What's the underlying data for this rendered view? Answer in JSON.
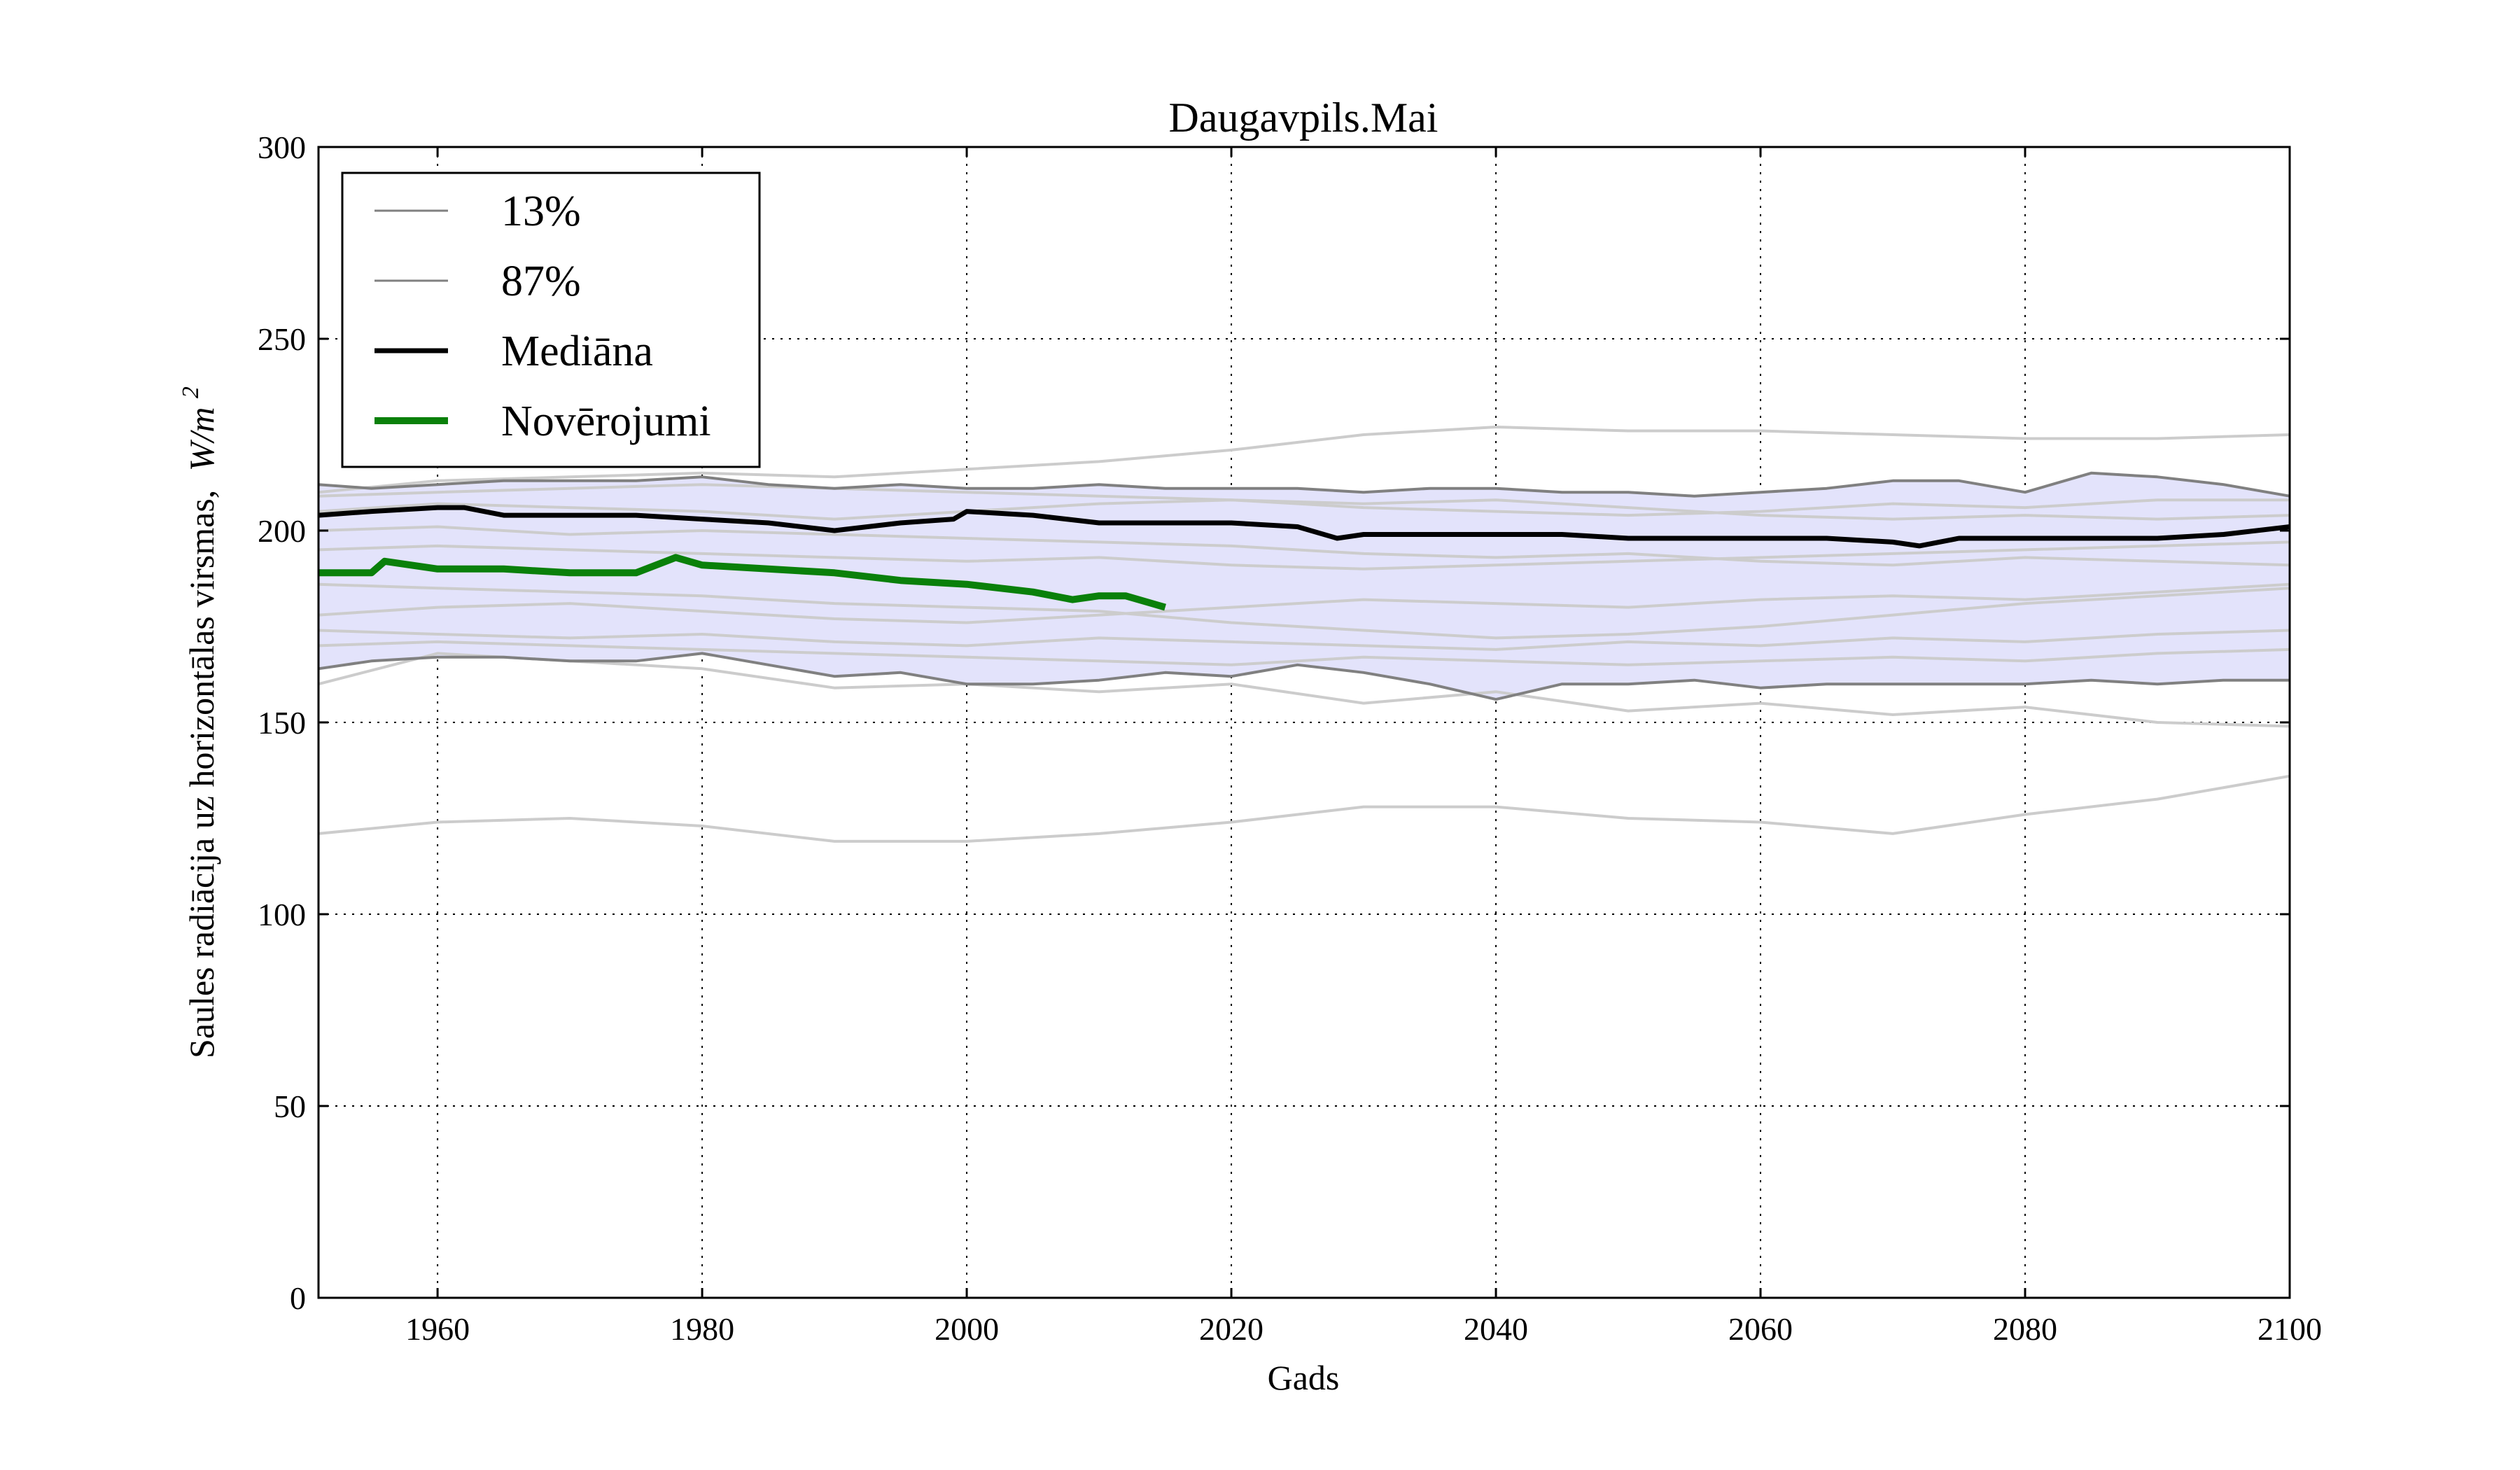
{
  "chart_data": {
    "type": "line",
    "title": "Daugavpils.Mai",
    "xlabel": "Gads",
    "ylabel": "Saules radiācija uz horizontālas virsmas,",
    "ylabel_unit": "W/m",
    "ylabel_unit_exp": "2",
    "xlim": [
      1951,
      2100
    ],
    "ylim": [
      0,
      300
    ],
    "x_ticks": [
      1960,
      1980,
      2000,
      2020,
      2040,
      2060,
      2080,
      2100
    ],
    "y_ticks": [
      0,
      50,
      100,
      150,
      200,
      250,
      300
    ],
    "grid": true,
    "legend_position": "upper-left",
    "legend": [
      {
        "label": "13%",
        "style": "thin-gray"
      },
      {
        "label": "87%",
        "style": "thin-gray"
      },
      {
        "label": "Mediāna",
        "style": "thick-black"
      },
      {
        "label": "Novērojumi",
        "style": "thick-green"
      }
    ],
    "colors": {
      "band_fill": "#e3e3fb",
      "ensemble": "#cccccc",
      "percentile": "#808080",
      "median": "#000000",
      "observations": "#0a800a",
      "grid": "#000000"
    },
    "band": {
      "x": [
        1951,
        1955,
        1960,
        1965,
        1970,
        1975,
        1980,
        1985,
        1990,
        1995,
        2000,
        2005,
        2010,
        2015,
        2020,
        2025,
        2030,
        2035,
        2040,
        2045,
        2050,
        2055,
        2060,
        2065,
        2070,
        2075,
        2080,
        2085,
        2090,
        2095,
        2100
      ],
      "lower": [
        164,
        166,
        167,
        167,
        166,
        166,
        168,
        165,
        162,
        163,
        160,
        160,
        161,
        163,
        162,
        165,
        163,
        160,
        156,
        160,
        160,
        161,
        159,
        160,
        160,
        160,
        160,
        161,
        160,
        161,
        161
      ],
      "upper": [
        212,
        211,
        212,
        213,
        213,
        213,
        214,
        212,
        211,
        212,
        211,
        211,
        212,
        211,
        211,
        211,
        210,
        211,
        211,
        210,
        210,
        209,
        210,
        211,
        213,
        213,
        210,
        215,
        214,
        212,
        209
      ]
    },
    "series": [
      {
        "name": "Mediāna",
        "x": [
          1951,
          1955,
          1960,
          1962,
          1965,
          1970,
          1975,
          1980,
          1985,
          1990,
          1995,
          1999,
          2000,
          2005,
          2010,
          2015,
          2020,
          2025,
          2028,
          2030,
          2035,
          2040,
          2045,
          2050,
          2055,
          2060,
          2065,
          2070,
          2072,
          2075,
          2080,
          2085,
          2090,
          2095,
          2100
        ],
        "values": [
          204,
          205,
          206,
          206,
          204,
          204,
          204,
          203,
          202,
          200,
          202,
          203,
          205,
          204,
          202,
          202,
          202,
          201,
          198,
          199,
          199,
          199,
          199,
          198,
          198,
          198,
          198,
          197,
          196,
          198,
          198,
          198,
          198,
          199,
          201
        ]
      },
      {
        "name": "Novērojumi",
        "x": [
          1951,
          1955,
          1956,
          1960,
          1965,
          1970,
          1975,
          1978,
          1980,
          1985,
          1990,
          1995,
          2000,
          2005,
          2008,
          2010,
          2012,
          2015
        ],
        "values": [
          189,
          189,
          192,
          190,
          190,
          189,
          189,
          193,
          191,
          190,
          189,
          187,
          186,
          184,
          182,
          183,
          183,
          180
        ]
      },
      {
        "name": "ensemble-1",
        "x": [
          1951,
          1960,
          1970,
          1980,
          1990,
          2000,
          2010,
          2020,
          2030,
          2040,
          2050,
          2060,
          2070,
          2080,
          2090,
          2100
        ],
        "values": [
          121,
          124,
          125,
          123,
          119,
          119,
          121,
          124,
          128,
          128,
          125,
          124,
          121,
          126,
          130,
          136
        ]
      },
      {
        "name": "ensemble-2",
        "x": [
          1951,
          1960,
          1970,
          1980,
          1990,
          2000,
          2010,
          2020,
          2030,
          2040,
          2050,
          2060,
          2070,
          2080,
          2090,
          2100
        ],
        "values": [
          210,
          213,
          214,
          215,
          214,
          216,
          218,
          221,
          225,
          227,
          226,
          226,
          225,
          224,
          224,
          225
        ]
      },
      {
        "name": "ensemble-3",
        "x": [
          1951,
          1960,
          1970,
          1980,
          1990,
          2000,
          2010,
          2020,
          2030,
          2040,
          2050,
          2060,
          2070,
          2080,
          2090,
          2100
        ],
        "values": [
          160,
          168,
          166,
          164,
          159,
          160,
          158,
          160,
          155,
          158,
          153,
          155,
          152,
          154,
          150,
          149
        ]
      },
      {
        "name": "ensemble-4",
        "x": [
          1951,
          1960,
          1970,
          1980,
          1990,
          2000,
          2010,
          2020,
          2030,
          2040,
          2050,
          2060,
          2070,
          2080,
          2090,
          2100
        ],
        "values": [
          186,
          185,
          184,
          183,
          181,
          180,
          179,
          176,
          174,
          172,
          173,
          175,
          178,
          181,
          183,
          185
        ]
      },
      {
        "name": "ensemble-5",
        "x": [
          1951,
          1960,
          1970,
          1980,
          1990,
          2000,
          2010,
          2020,
          2030,
          2040,
          2050,
          2060,
          2070,
          2080,
          2090,
          2100
        ],
        "values": [
          205,
          207,
          206,
          205,
          203,
          205,
          207,
          208,
          206,
          205,
          204,
          205,
          207,
          206,
          208,
          208
        ]
      },
      {
        "name": "ensemble-6",
        "x": [
          1951,
          1960,
          1970,
          1980,
          1990,
          2000,
          2010,
          2020,
          2030,
          2040,
          2050,
          2060,
          2070,
          2080,
          2090,
          2100
        ],
        "values": [
          170,
          171,
          170,
          169,
          168,
          167,
          166,
          165,
          167,
          166,
          165,
          166,
          167,
          166,
          168,
          169
        ]
      },
      {
        "name": "ensemble-7",
        "x": [
          1951,
          1960,
          1970,
          1980,
          1990,
          2000,
          2010,
          2020,
          2030,
          2040,
          2050,
          2060,
          2070,
          2080,
          2090,
          2100
        ],
        "values": [
          195,
          196,
          195,
          194,
          193,
          192,
          193,
          191,
          190,
          191,
          192,
          193,
          194,
          195,
          196,
          197
        ]
      },
      {
        "name": "ensemble-8",
        "x": [
          1951,
          1960,
          1970,
          1980,
          1990,
          2000,
          2010,
          2020,
          2030,
          2040,
          2050,
          2060,
          2070,
          2080,
          2090,
          2100
        ],
        "values": [
          178,
          180,
          181,
          179,
          177,
          176,
          178,
          180,
          182,
          181,
          180,
          182,
          183,
          182,
          184,
          186
        ]
      },
      {
        "name": "ensemble-9",
        "x": [
          1951,
          1960,
          1970,
          1980,
          1990,
          2000,
          2010,
          2020,
          2030,
          2040,
          2050,
          2060,
          2070,
          2080,
          2090,
          2100
        ],
        "values": [
          209,
          210,
          211,
          212,
          211,
          210,
          209,
          208,
          207,
          208,
          206,
          204,
          203,
          204,
          203,
          204
        ]
      },
      {
        "name": "ensemble-10",
        "x": [
          1951,
          1960,
          1970,
          1980,
          1990,
          2000,
          2010,
          2020,
          2030,
          2040,
          2050,
          2060,
          2070,
          2080,
          2090,
          2100
        ],
        "values": [
          200,
          201,
          199,
          200,
          199,
          198,
          197,
          196,
          194,
          193,
          194,
          192,
          191,
          193,
          192,
          191
        ]
      },
      {
        "name": "ensemble-11",
        "x": [
          1951,
          1960,
          1970,
          1980,
          1990,
          2000,
          2010,
          2020,
          2030,
          2040,
          2050,
          2060,
          2070,
          2080,
          2090,
          2100
        ],
        "values": [
          174,
          173,
          172,
          173,
          171,
          170,
          172,
          171,
          170,
          169,
          171,
          170,
          172,
          171,
          173,
          174
        ]
      }
    ]
  }
}
